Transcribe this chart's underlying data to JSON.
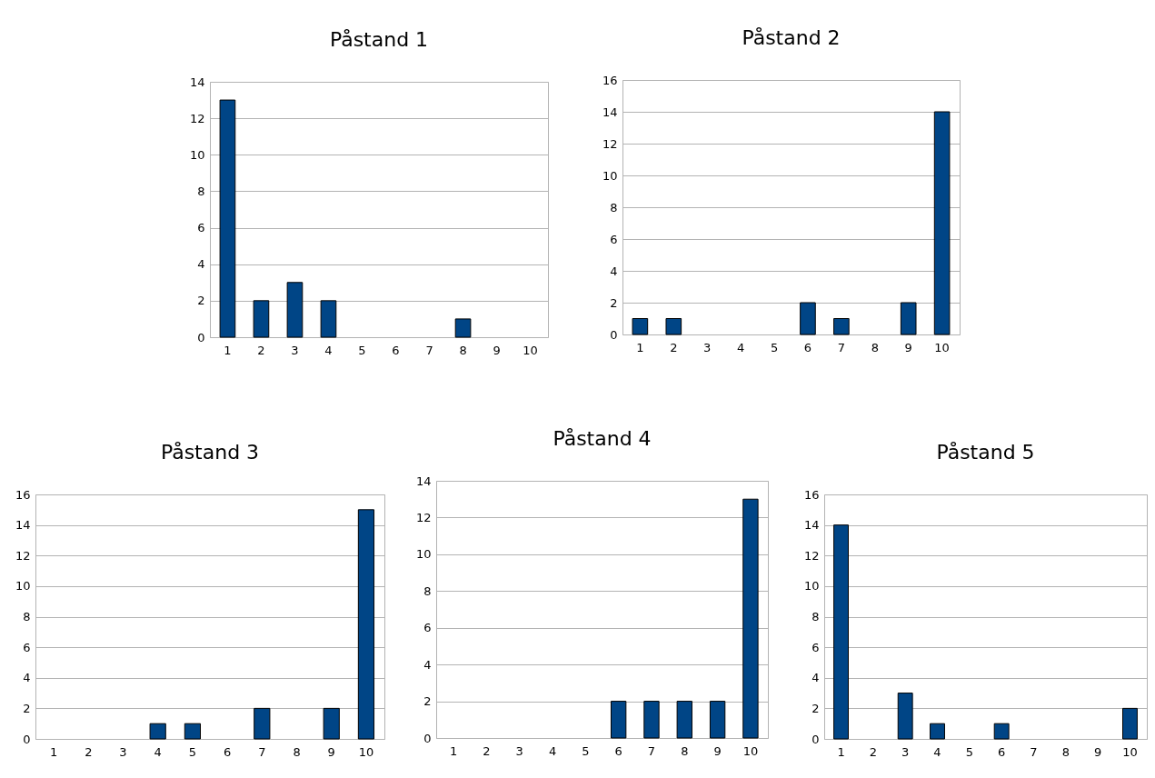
{
  "chart_data": [
    {
      "type": "bar",
      "title": "Påstand 1",
      "categories": [
        "1",
        "2",
        "3",
        "4",
        "5",
        "6",
        "7",
        "8",
        "9",
        "10"
      ],
      "values": [
        13,
        2,
        3,
        2,
        0,
        0,
        0,
        1,
        0,
        0
      ],
      "color": "#004586",
      "ylim": [
        0,
        14
      ],
      "yticks": [
        0,
        2,
        4,
        6,
        8,
        10,
        12,
        14
      ],
      "grid": "y"
    },
    {
      "type": "bar",
      "title": "Påstand 2",
      "categories": [
        "1",
        "2",
        "3",
        "4",
        "5",
        "6",
        "7",
        "8",
        "9",
        "10"
      ],
      "values": [
        1,
        1,
        0,
        0,
        0,
        2,
        1,
        0,
        2,
        14
      ],
      "color": "#004586",
      "ylim": [
        0,
        16
      ],
      "yticks": [
        0,
        2,
        4,
        6,
        8,
        10,
        12,
        14,
        16
      ],
      "grid": "y"
    },
    {
      "type": "bar",
      "title": "Påstand 3",
      "categories": [
        "1",
        "2",
        "3",
        "4",
        "5",
        "6",
        "7",
        "8",
        "9",
        "10"
      ],
      "values": [
        0,
        0,
        0,
        1,
        1,
        0,
        2,
        0,
        2,
        15
      ],
      "color": "#004586",
      "ylim": [
        0,
        16
      ],
      "yticks": [
        0,
        2,
        4,
        6,
        8,
        10,
        12,
        14,
        16
      ],
      "grid": "y"
    },
    {
      "type": "bar",
      "title": "Påstand 4",
      "categories": [
        "1",
        "2",
        "3",
        "4",
        "5",
        "6",
        "7",
        "8",
        "9",
        "10"
      ],
      "values": [
        0,
        0,
        0,
        0,
        0,
        2,
        2,
        2,
        2,
        13
      ],
      "color": "#004586",
      "ylim": [
        0,
        14
      ],
      "yticks": [
        0,
        2,
        4,
        6,
        8,
        10,
        12,
        14
      ],
      "grid": "y"
    },
    {
      "type": "bar",
      "title": "Påstand 5",
      "categories": [
        "1",
        "2",
        "3",
        "4",
        "5",
        "6",
        "7",
        "8",
        "9",
        "10"
      ],
      "values": [
        14,
        0,
        3,
        1,
        0,
        1,
        0,
        0,
        0,
        2
      ],
      "color": "#004586",
      "ylim": [
        0,
        16
      ],
      "yticks": [
        0,
        2,
        4,
        6,
        8,
        10,
        12,
        14,
        16
      ],
      "grid": "y"
    }
  ]
}
